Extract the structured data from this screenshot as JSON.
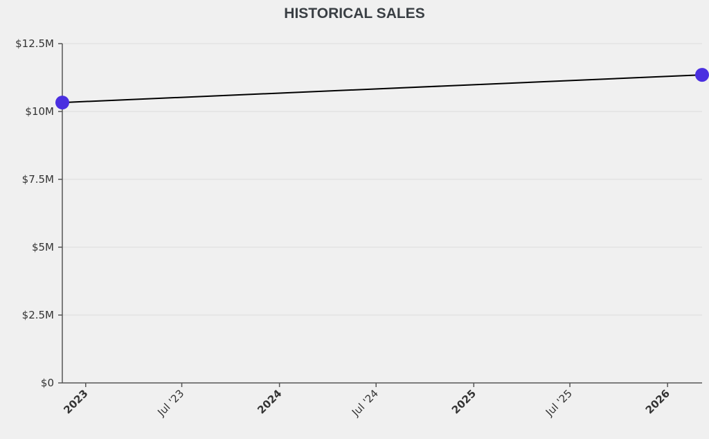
{
  "chart_data": {
    "type": "line",
    "title": "HISTORICAL SALES",
    "xlabel": "",
    "ylabel": "",
    "x": [
      "2022-11-18",
      "2026-03-07"
    ],
    "series": [
      {
        "name": "Sales",
        "values": [
          10330000,
          11350000
        ],
        "line_color": "#000000",
        "marker_color": "#4a2fe0"
      }
    ],
    "ylim": [
      0,
      12500000
    ],
    "xlim": [
      "2022-11-18",
      "2026-03-07"
    ],
    "yticks": [
      {
        "value": 0,
        "label": "$0"
      },
      {
        "value": 2500000,
        "label": "$2.5M"
      },
      {
        "value": 5000000,
        "label": "$5M"
      },
      {
        "value": 7500000,
        "label": "$7.5M"
      },
      {
        "value": 10000000,
        "label": "$10M"
      },
      {
        "value": 12500000,
        "label": "$12.5M"
      }
    ],
    "xticks": [
      {
        "date": "2023-01-01",
        "label": "2023",
        "major": true
      },
      {
        "date": "2023-07-01",
        "label": "Jul '23",
        "major": false
      },
      {
        "date": "2024-01-01",
        "label": "2024",
        "major": true
      },
      {
        "date": "2024-07-01",
        "label": "Jul '24",
        "major": false
      },
      {
        "date": "2025-01-01",
        "label": "2025",
        "major": true
      },
      {
        "date": "2025-07-01",
        "label": "Jul '25",
        "major": false
      },
      {
        "date": "2026-01-01",
        "label": "2026",
        "major": true
      }
    ],
    "grid": true,
    "legend": "none"
  }
}
